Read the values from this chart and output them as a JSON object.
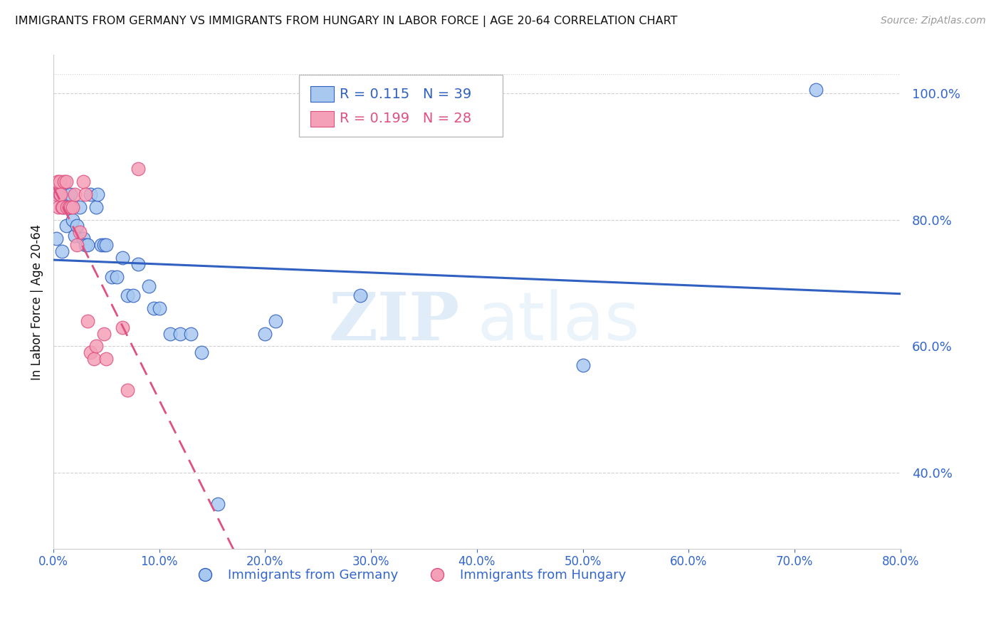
{
  "title": "IMMIGRANTS FROM GERMANY VS IMMIGRANTS FROM HUNGARY IN LABOR FORCE | AGE 20-64 CORRELATION CHART",
  "source": "Source: ZipAtlas.com",
  "ylabel": "In Labor Force | Age 20-64",
  "xlim": [
    0.0,
    0.8
  ],
  "ylim": [
    0.28,
    1.06
  ],
  "xticks": [
    0.0,
    0.1,
    0.2,
    0.3,
    0.4,
    0.5,
    0.6,
    0.7,
    0.8
  ],
  "yticks_right": [
    0.4,
    0.6,
    0.8,
    1.0
  ],
  "R_germany": 0.115,
  "N_germany": 39,
  "R_hungary": 0.199,
  "N_hungary": 28,
  "color_germany": "#A8C8F0",
  "color_hungary": "#F4A0B8",
  "line_color_germany": "#3060C0",
  "line_color_hungary": "#E05080",
  "germany_x": [
    0.003,
    0.008,
    0.01,
    0.012,
    0.014,
    0.016,
    0.018,
    0.018,
    0.02,
    0.022,
    0.025,
    0.028,
    0.03,
    0.032,
    0.035,
    0.04,
    0.042,
    0.045,
    0.048,
    0.05,
    0.055,
    0.06,
    0.065,
    0.07,
    0.075,
    0.08,
    0.09,
    0.095,
    0.1,
    0.11,
    0.12,
    0.14,
    0.2,
    0.21,
    0.29,
    0.5,
    0.72,
    0.155,
    0.13
  ],
  "germany_y": [
    0.77,
    0.75,
    0.82,
    0.79,
    0.84,
    0.84,
    0.82,
    0.8,
    0.775,
    0.79,
    0.82,
    0.77,
    0.76,
    0.76,
    0.84,
    0.82,
    0.84,
    0.76,
    0.76,
    0.76,
    0.71,
    0.71,
    0.74,
    0.68,
    0.68,
    0.73,
    0.695,
    0.66,
    0.66,
    0.62,
    0.62,
    0.59,
    0.62,
    0.64,
    0.68,
    0.57,
    1.005,
    0.35,
    0.62
  ],
  "hungary_x": [
    0.003,
    0.004,
    0.005,
    0.006,
    0.006,
    0.007,
    0.008,
    0.009,
    0.01,
    0.012,
    0.013,
    0.015,
    0.016,
    0.018,
    0.02,
    0.022,
    0.025,
    0.028,
    0.03,
    0.032,
    0.035,
    0.038,
    0.04,
    0.048,
    0.05,
    0.065,
    0.07,
    0.08
  ],
  "hungary_y": [
    0.84,
    0.86,
    0.82,
    0.84,
    0.86,
    0.84,
    0.82,
    0.82,
    0.86,
    0.86,
    0.82,
    0.82,
    0.82,
    0.82,
    0.84,
    0.76,
    0.78,
    0.86,
    0.84,
    0.64,
    0.59,
    0.58,
    0.6,
    0.62,
    0.58,
    0.63,
    0.53,
    0.88
  ],
  "title_color": "#111111",
  "axis_color": "#3366CC",
  "grid_color": "#CCCCCC",
  "background_color": "#FFFFFF",
  "watermark_zip": "ZIP",
  "watermark_atlas": "atlas",
  "legend_label_germany": "Immigrants from Germany",
  "legend_label_hungary": "Immigrants from Hungary",
  "trend_line_x_start": 0.0,
  "trend_line_x_end": 0.8
}
